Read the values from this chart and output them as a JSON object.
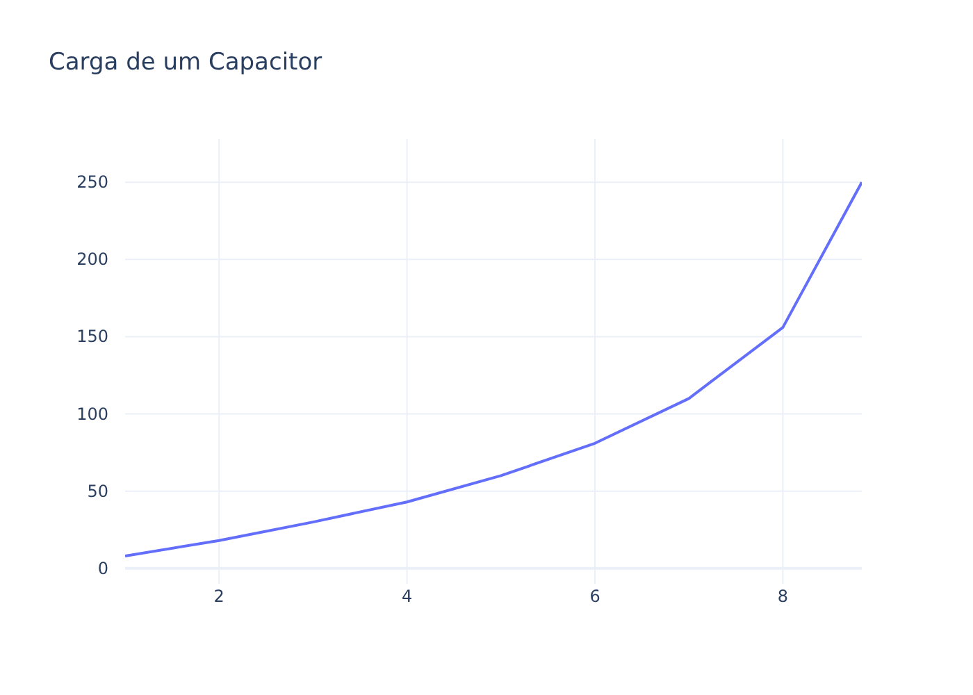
{
  "chart_data": {
    "type": "line",
    "title": "Carga de um Capacitor",
    "x": [
      1,
      2,
      3,
      4,
      5,
      6,
      7,
      8,
      8.84
    ],
    "series": [
      {
        "color": "#636efa",
        "values": [
          8,
          18,
          30,
          43,
          60,
          81,
          110,
          156,
          250
        ]
      }
    ],
    "xlim": [
      1,
      8.84
    ],
    "ylim": [
      -10,
      278
    ],
    "xticks": [
      2,
      4,
      6,
      8
    ],
    "yticks": [
      0,
      50,
      100,
      150,
      200,
      250
    ],
    "grid": true,
    "marker": "none",
    "line_style": "solid"
  }
}
